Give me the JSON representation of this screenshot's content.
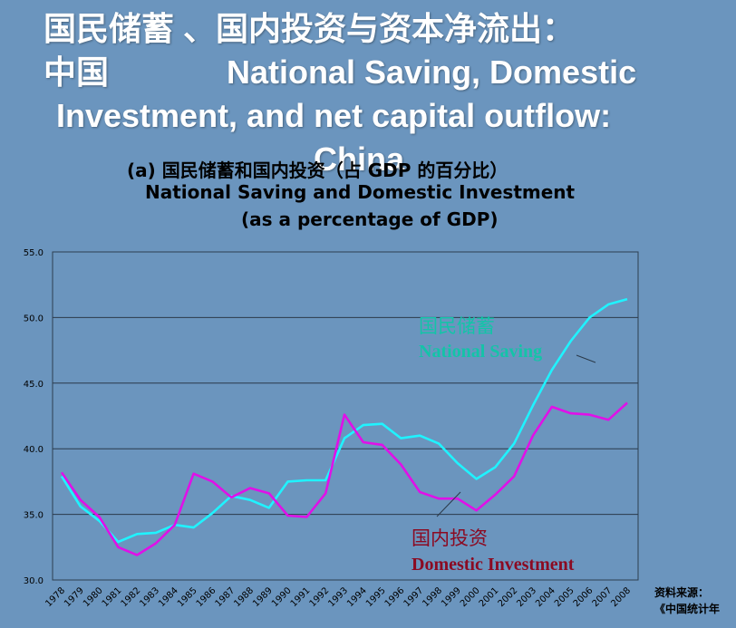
{
  "title": {
    "line1": "国民储蓄 、国内投资与资本净流出：",
    "line2_zh": "中国",
    "line2_en": "National Saving, Domestic",
    "line3": "Investment, and net capital outflow:",
    "line4": "China"
  },
  "subtitle": {
    "zh": "(a) 国民储蓄和国内投资（占 GDP 的百分比）",
    "en_line1": "National Saving and Domestic Investment",
    "en_line2": "(as a percentage of GDP)"
  },
  "source": {
    "label": "资料来源：",
    "text": "《中国统计年"
  },
  "colors": {
    "background": "#6b95be",
    "saving": "#1ff3ff",
    "investment": "#e010e8",
    "saving_label": "#13c4a8",
    "investment_label": "#8b0a22"
  },
  "chart_data": {
    "type": "line",
    "x": [
      1978,
      1979,
      1980,
      1981,
      1982,
      1983,
      1984,
      1985,
      1986,
      1987,
      1988,
      1989,
      1990,
      1991,
      1992,
      1993,
      1994,
      1995,
      1996,
      1997,
      1998,
      1999,
      2000,
      2001,
      2002,
      2003,
      2004,
      2005,
      2006,
      2007,
      2008
    ],
    "x_tick_labels": [
      "1978",
      "1979",
      "1980",
      "1981",
      "1982",
      "1983",
      "1984",
      "1985",
      "1986",
      "1987",
      "1988",
      "1989",
      "1990",
      "1991",
      "1992",
      "1993",
      "1994",
      "1995",
      "1996",
      "1997",
      "1998",
      "1999",
      "2000",
      "2001",
      "2002",
      "2003",
      "2004",
      "2005",
      "2006",
      "2007",
      "2008"
    ],
    "y_tick_labels": [
      "30.0",
      "35.0",
      "40.0",
      "45.0",
      "50.0",
      "55.0"
    ],
    "ylim": [
      30,
      55
    ],
    "grid": "horizontal",
    "series": [
      {
        "name_zh": "国民储蓄",
        "name": "National Saving",
        "values": [
          37.9,
          35.6,
          34.5,
          32.9,
          33.5,
          33.6,
          34.2,
          34.0,
          35.1,
          36.4,
          36.1,
          35.5,
          37.5,
          37.6,
          37.6,
          40.8,
          41.8,
          41.9,
          40.8,
          41.0,
          40.4,
          38.9,
          37.7,
          38.6,
          40.4,
          43.3,
          46.0,
          48.2,
          50.0,
          51.0,
          51.4
        ]
      },
      {
        "name_zh": "国内投资",
        "name": "Domestic Investment",
        "values": [
          38.2,
          36.1,
          34.8,
          32.5,
          31.9,
          32.8,
          34.2,
          38.1,
          37.5,
          36.3,
          37.0,
          36.6,
          34.9,
          34.8,
          36.6,
          42.6,
          40.5,
          40.3,
          38.8,
          36.7,
          36.2,
          36.2,
          35.3,
          36.5,
          37.9,
          41.0,
          43.2,
          42.7,
          42.6,
          42.2,
          43.5
        ]
      }
    ]
  }
}
